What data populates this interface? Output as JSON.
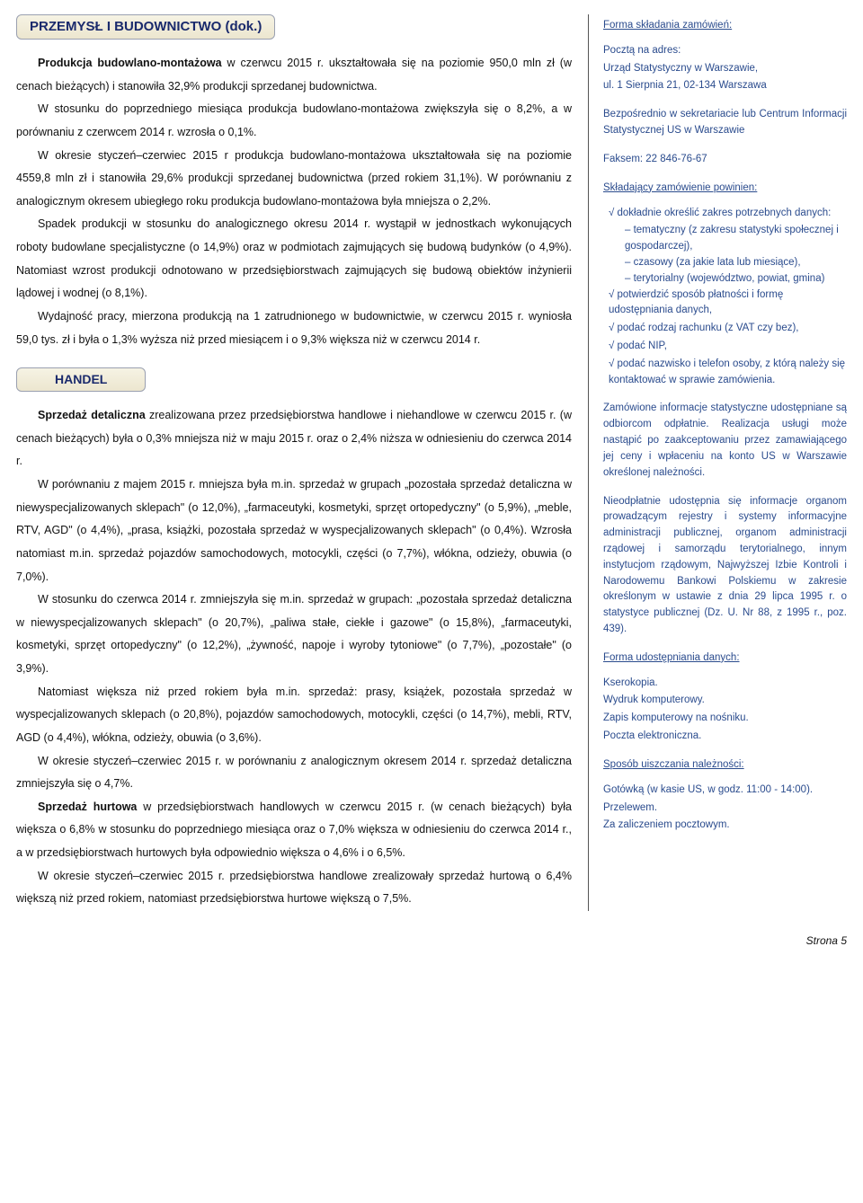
{
  "section1": {
    "title": "PRZEMYSŁ I BUDOWNICTWO (dok.)",
    "paragraphs": [
      "<b>Produkcja budowlano-montażowa</b> w czerwcu 2015 r. ukształtowała się na poziomie 950,0 mln zł (w cenach bieżących) i stanowiła 32,9% produkcji sprzedanej budownictwa.",
      "W stosunku do poprzedniego miesiąca produkcja budowlano-montażowa zwiększyła się o 8,2%, a w porównaniu z czerwcem 2014 r. wzrosła o 0,1%.",
      "W okresie styczeń–czerwiec 2015 r produkcja budowlano-montażowa ukształtowała się na poziomie 4559,8 mln zł i stanowiła 29,6% produkcji sprzedanej budownictwa (przed rokiem 31,1%). W porównaniu z analogicznym okresem ubiegłego roku produkcja budowlano-montażowa była mniejsza o 2,2%.",
      "Spadek produkcji w stosunku do analogicznego okresu 2014 r. wystąpił w jednostkach wykonujących roboty budowlane specjalistyczne (o 14,9%) oraz w podmiotach zajmujących się budową budynków (o 4,9%). Natomiast wzrost produkcji odnotowano w przedsiębiorstwach zajmujących się budową obiektów inżynierii lądowej i wodnej (o 8,1%).",
      "Wydajność pracy, mierzona produkcją na 1 zatrudnionego w budownictwie, w czerwcu 2015 r. wyniosła 59,0 tys. zł i była o 1,3% wyższa niż przed miesiącem i o 9,3% większa niż w czerwcu 2014 r."
    ]
  },
  "section2": {
    "title": "HANDEL",
    "paragraphs": [
      "<b>Sprzedaż detaliczna</b> zrealizowana przez przedsiębiorstwa handlowe i niehandlowe w czerwcu 2015 r. (w cenach bieżących) była o 0,3% mniejsza niż w maju 2015 r. oraz o 2,4% niższa w odniesieniu do czerwca 2014 r.",
      "W porównaniu z majem 2015 r. mniejsza była m.in. sprzedaż w grupach „pozostała sprzedaż detaliczna w niewyspecjalizowanych sklepach\" (o 12,0%), „farmaceutyki, kosmetyki, sprzęt ortopedyczny\" (o 5,9%), „meble, RTV, AGD\" (o 4,4%), „prasa, książki, pozostała sprzedaż w wyspecjalizowanych sklepach\" (o 0,4%). Wzrosła natomiast m.in. sprzedaż pojazdów samochodowych, motocykli, części (o 7,7%), włókna, odzieży, obuwia (o 7,0%).",
      "W stosunku do czerwca 2014 r. zmniejszyła się m.in. sprzedaż  w  grupach: „pozostała sprzedaż detaliczna w niewyspecjalizowanych sklepach\" (o 20,7%), „paliwa  stałe, ciekłe i gazowe\" (o 15,8%),  „farmaceutyki, kosmetyki, sprzęt ortopedyczny\" (o 12,2%), „żywność, napoje i wyroby tytoniowe\" (o 7,7%), „pozostałe\" (o 3,9%).",
      "Natomiast większa niż przed rokiem była m.in. sprzedaż: prasy, książek, pozostała sprzedaż w wyspecjalizowanych sklepach (o 20,8%), pojazdów samochodowych, motocykli, części (o 14,7%), mebli, RTV, AGD (o 4,4%), włókna, odzieży, obuwia (o 3,6%).",
      "W okresie styczeń–czerwiec 2015 r. w porównaniu z analogicznym okresem 2014 r. sprzedaż detaliczna zmniejszyła się o 4,7%.",
      "<b>Sprzedaż hurtowa</b> w przedsiębiorstwach handlowych w czerwcu 2015 r. (w cenach bieżących) była większa o 6,8% w stosunku do poprzedniego miesiąca oraz o 7,0% większa w odniesieniu do czerwca 2014 r., a w przedsiębiorstwach hurtowych była odpowiednio większa o 4,6% i o 6,5%.",
      "W okresie styczeń–czerwiec 2015 r. przedsiębiorstwa handlowe zrealizowały sprzedaż hurtową o 6,4% większą niż przed rokiem, natomiast przedsiębiorstwa hurtowe większą o 7,5%."
    ]
  },
  "sidebar": {
    "h1": "Forma składania zamówień:",
    "addr_label": "Pocztą na adres:",
    "addr1": "Urząd Statystyczny w Warszawie,",
    "addr2": "ul. 1 Sierpnia 21, 02-134 Warszawa",
    "direct": "Bezpośrednio w sekretariacie lub Centrum Informacji Statystycznej US w Warszawie",
    "fax": "Faksem: 22 846-76-67",
    "h2": "Składający zamówienie powinien:",
    "bullets_root": [
      "dokładnie określić zakres potrzebnych danych:",
      "potwierdzić sposób płatności i formę udostępniania danych,",
      "podać rodzaj rachunku (z VAT czy bez),",
      "podać NIP,",
      "podać nazwisko i telefon osoby, z którą należy się kontaktować w sprawie zamówienia."
    ],
    "bullets_sub": [
      "tematyczny (z zakresu statystyki społecznej i gospodarczej),",
      "czasowy (za jakie lata lub miesiące),",
      "terytorialny (województwo, powiat, gmina)"
    ],
    "p_paid": "Zamówione informacje statystyczne udostępniane są odbiorcom odpłatnie. Realizacja usługi może nastąpić po zaakceptowaniu przez zamawiającego jej ceny i wpłaceniu na konto US w Warszawie określonej należności.",
    "p_free": "Nieodpłatnie udostępnia się informacje organom prowadzącym rejestry i systemy informacyjne administracji publicznej, organom administracji rządowej i samorządu terytorialnego, innym instytucjom rządowym, Najwyższej Izbie Kontroli i Narodowemu Bankowi Polskiemu w zakresie określonym w ustawie z dnia 29 lipca 1995 r. o statystyce publicznej (Dz. U. Nr 88, z 1995 r., poz. 439).",
    "h3": "Forma udostępniania danych:",
    "forms": [
      "Kserokopia.",
      "Wydruk komputerowy.",
      "Zapis komputerowy na nośniku.",
      "Poczta elektroniczna."
    ],
    "h4": "Sposób uiszczania należności:",
    "pay": [
      "Gotówką (w kasie US, w godz. 11:00 - 14:00).",
      "Przelewem.",
      "Za zaliczeniem pocztowym."
    ]
  },
  "footer": "Strona 5"
}
